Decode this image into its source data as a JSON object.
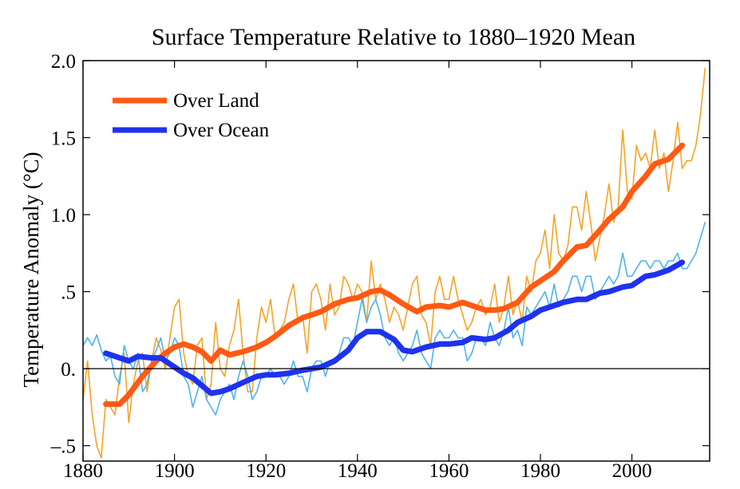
{
  "chart_data": {
    "type": "line",
    "title": "Surface Temperature Relative to 1880–1920 Mean",
    "xlabel": "",
    "ylabel": "Temperature Anomaly (°C)",
    "xlim": [
      1880,
      2017
    ],
    "ylim": [
      -0.6,
      2.0
    ],
    "x_ticks": [
      1880,
      1900,
      1920,
      1940,
      1960,
      1980,
      2000
    ],
    "x_tick_labels": [
      "1880",
      "1900",
      "1920",
      "1940",
      "1960",
      "1980",
      "2000"
    ],
    "y_ticks": [
      -0.5,
      0.0,
      0.5,
      1.0,
      1.5,
      2.0
    ],
    "y_tick_labels": [
      "–.5",
      "0.",
      ".5",
      "1.0",
      "1.5",
      "2.0"
    ],
    "zero_line": true,
    "legend_position": "top-left",
    "series": [
      {
        "name": "Over Land",
        "color": "#ff5a14",
        "kind": "smoothed",
        "x": [
          1885,
          1888,
          1890,
          1893,
          1896,
          1898,
          1900,
          1902,
          1904,
          1906,
          1908,
          1910,
          1912,
          1915,
          1918,
          1920,
          1922,
          1925,
          1928,
          1930,
          1932,
          1935,
          1938,
          1940,
          1943,
          1945,
          1947,
          1950,
          1953,
          1955,
          1958,
          1960,
          1963,
          1965,
          1968,
          1970,
          1972,
          1975,
          1978,
          1980,
          1983,
          1985,
          1988,
          1990,
          1993,
          1995,
          1998,
          2000,
          2003,
          2005,
          2008,
          2011
        ],
        "y": [
          -0.23,
          -0.23,
          -0.17,
          -0.05,
          0.05,
          0.1,
          0.14,
          0.16,
          0.14,
          0.11,
          0.05,
          0.12,
          0.09,
          0.11,
          0.14,
          0.17,
          0.21,
          0.28,
          0.33,
          0.35,
          0.37,
          0.42,
          0.45,
          0.46,
          0.5,
          0.51,
          0.48,
          0.42,
          0.37,
          0.4,
          0.41,
          0.4,
          0.43,
          0.41,
          0.38,
          0.38,
          0.39,
          0.43,
          0.53,
          0.57,
          0.63,
          0.7,
          0.79,
          0.8,
          0.9,
          0.97,
          1.05,
          1.15,
          1.25,
          1.33,
          1.36,
          1.45
        ]
      },
      {
        "name": "Over Ocean",
        "color": "#1e32f0",
        "kind": "smoothed",
        "x": [
          1885,
          1888,
          1890,
          1892,
          1895,
          1897,
          1900,
          1902,
          1904,
          1906,
          1908,
          1910,
          1912,
          1915,
          1918,
          1920,
          1922,
          1925,
          1928,
          1930,
          1932,
          1935,
          1938,
          1940,
          1942,
          1945,
          1948,
          1950,
          1952,
          1955,
          1958,
          1960,
          1963,
          1965,
          1968,
          1970,
          1973,
          1975,
          1978,
          1980,
          1983,
          1985,
          1988,
          1990,
          1993,
          1995,
          1998,
          2000,
          2003,
          2005,
          2008,
          2011
        ],
        "y": [
          0.1,
          0.07,
          0.05,
          0.08,
          0.07,
          0.07,
          0.01,
          -0.03,
          -0.06,
          -0.11,
          -0.16,
          -0.15,
          -0.13,
          -0.09,
          -0.05,
          -0.04,
          -0.04,
          -0.03,
          -0.01,
          0.0,
          0.01,
          0.05,
          0.12,
          0.2,
          0.24,
          0.24,
          0.19,
          0.12,
          0.11,
          0.14,
          0.16,
          0.16,
          0.17,
          0.2,
          0.19,
          0.2,
          0.25,
          0.3,
          0.34,
          0.38,
          0.41,
          0.43,
          0.45,
          0.45,
          0.49,
          0.5,
          0.53,
          0.54,
          0.6,
          0.61,
          0.64,
          0.69
        ]
      },
      {
        "name": "",
        "color": "#f7a326",
        "kind": "annual",
        "x": [
          1880,
          1881,
          1882,
          1883,
          1884,
          1885,
          1886,
          1887,
          1888,
          1889,
          1890,
          1891,
          1892,
          1893,
          1894,
          1895,
          1896,
          1897,
          1898,
          1899,
          1900,
          1901,
          1902,
          1903,
          1904,
          1905,
          1906,
          1907,
          1908,
          1909,
          1910,
          1911,
          1912,
          1913,
          1914,
          1915,
          1916,
          1917,
          1918,
          1919,
          1920,
          1921,
          1922,
          1923,
          1924,
          1925,
          1926,
          1927,
          1928,
          1929,
          1930,
          1931,
          1932,
          1933,
          1934,
          1935,
          1936,
          1937,
          1938,
          1939,
          1940,
          1941,
          1942,
          1943,
          1944,
          1945,
          1946,
          1947,
          1948,
          1949,
          1950,
          1951,
          1952,
          1953,
          1954,
          1955,
          1956,
          1957,
          1958,
          1959,
          1960,
          1961,
          1962,
          1963,
          1964,
          1965,
          1966,
          1967,
          1968,
          1969,
          1970,
          1971,
          1972,
          1973,
          1974,
          1975,
          1976,
          1977,
          1978,
          1979,
          1980,
          1981,
          1982,
          1983,
          1984,
          1985,
          1986,
          1987,
          1988,
          1989,
          1990,
          1991,
          1992,
          1993,
          1994,
          1995,
          1996,
          1997,
          1998,
          1999,
          2000,
          2001,
          2002,
          2003,
          2004,
          2005,
          2006,
          2007,
          2008,
          2009,
          2010,
          2011,
          2012,
          2013,
          2014,
          2015,
          2016
        ],
        "y": [
          -0.2,
          0.05,
          -0.3,
          -0.5,
          -0.58,
          -0.2,
          -0.25,
          -0.3,
          -0.05,
          0.1,
          -0.35,
          -0.1,
          0.05,
          0.1,
          -0.15,
          0.05,
          0.2,
          0.12,
          0.0,
          0.2,
          0.4,
          0.45,
          0.1,
          -0.05,
          -0.1,
          0.15,
          0.2,
          -0.2,
          -0.1,
          0.3,
          0.0,
          -0.05,
          0.15,
          0.25,
          0.45,
          0.1,
          -0.15,
          -0.15,
          0.2,
          0.4,
          0.3,
          0.45,
          0.2,
          0.25,
          0.3,
          0.45,
          0.55,
          0.3,
          0.35,
          0.1,
          0.5,
          0.55,
          0.45,
          0.25,
          0.55,
          0.35,
          0.4,
          0.6,
          0.55,
          0.45,
          0.55,
          0.5,
          0.3,
          0.7,
          0.45,
          0.55,
          0.45,
          0.3,
          0.4,
          0.35,
          0.25,
          0.4,
          0.55,
          0.6,
          0.35,
          0.3,
          0.15,
          0.5,
          0.6,
          0.45,
          0.45,
          0.6,
          0.45,
          0.35,
          0.25,
          0.3,
          0.4,
          0.45,
          0.35,
          0.4,
          0.55,
          0.3,
          0.4,
          0.6,
          0.35,
          0.45,
          0.3,
          0.6,
          0.5,
          0.7,
          0.75,
          0.9,
          0.65,
          1.0,
          0.75,
          0.7,
          0.8,
          1.05,
          1.05,
          0.9,
          1.15,
          0.95,
          0.7,
          0.85,
          1.0,
          1.2,
          0.95,
          1.05,
          1.55,
          1.15,
          1.1,
          1.45,
          1.35,
          1.4,
          1.3,
          1.55,
          1.3,
          1.4,
          1.15,
          1.35,
          1.6,
          1.3,
          1.35,
          1.35,
          1.45,
          1.65,
          1.95
        ]
      },
      {
        "name": "",
        "color": "#4db3f0",
        "kind": "annual",
        "x": [
          1880,
          1881,
          1882,
          1883,
          1884,
          1885,
          1886,
          1887,
          1888,
          1889,
          1890,
          1891,
          1892,
          1893,
          1894,
          1895,
          1896,
          1897,
          1898,
          1899,
          1900,
          1901,
          1902,
          1903,
          1904,
          1905,
          1906,
          1907,
          1908,
          1909,
          1910,
          1911,
          1912,
          1913,
          1914,
          1915,
          1916,
          1917,
          1918,
          1919,
          1920,
          1921,
          1922,
          1923,
          1924,
          1925,
          1926,
          1927,
          1928,
          1929,
          1930,
          1931,
          1932,
          1933,
          1934,
          1935,
          1936,
          1937,
          1938,
          1939,
          1940,
          1941,
          1942,
          1943,
          1944,
          1945,
          1946,
          1947,
          1948,
          1949,
          1950,
          1951,
          1952,
          1953,
          1954,
          1955,
          1956,
          1957,
          1958,
          1959,
          1960,
          1961,
          1962,
          1963,
          1964,
          1965,
          1966,
          1967,
          1968,
          1969,
          1970,
          1971,
          1972,
          1973,
          1974,
          1975,
          1976,
          1977,
          1978,
          1979,
          1980,
          1981,
          1982,
          1983,
          1984,
          1985,
          1986,
          1987,
          1988,
          1989,
          1990,
          1991,
          1992,
          1993,
          1994,
          1995,
          1996,
          1997,
          1998,
          1999,
          2000,
          2001,
          2002,
          2003,
          2004,
          2005,
          2006,
          2007,
          2008,
          2009,
          2010,
          2011,
          2012,
          2013,
          2014,
          2015,
          2016
        ],
        "y": [
          0.15,
          0.2,
          0.15,
          0.22,
          0.12,
          0.05,
          0.08,
          -0.05,
          -0.1,
          0.15,
          0.05,
          0.0,
          0.1,
          -0.15,
          -0.1,
          0.05,
          0.12,
          0.2,
          0.05,
          0.1,
          0.2,
          0.15,
          -0.05,
          -0.1,
          -0.25,
          -0.15,
          -0.05,
          -0.2,
          -0.25,
          -0.3,
          -0.2,
          -0.15,
          -0.1,
          -0.2,
          -0.05,
          0.05,
          -0.05,
          -0.2,
          -0.15,
          -0.05,
          -0.05,
          0.0,
          -0.05,
          -0.05,
          -0.1,
          -0.05,
          0.05,
          -0.05,
          -0.05,
          -0.15,
          0.0,
          0.05,
          0.05,
          -0.05,
          0.05,
          0.05,
          0.1,
          0.2,
          0.2,
          0.15,
          0.3,
          0.45,
          0.3,
          0.4,
          0.45,
          0.35,
          0.2,
          0.15,
          0.2,
          0.1,
          0.05,
          0.1,
          0.15,
          0.25,
          0.1,
          0.05,
          0.0,
          0.2,
          0.25,
          0.2,
          0.2,
          0.25,
          0.2,
          0.2,
          0.05,
          0.1,
          0.2,
          0.2,
          0.15,
          0.3,
          0.2,
          0.15,
          0.25,
          0.4,
          0.2,
          0.25,
          0.15,
          0.4,
          0.35,
          0.4,
          0.45,
          0.5,
          0.4,
          0.55,
          0.4,
          0.45,
          0.5,
          0.6,
          0.6,
          0.5,
          0.6,
          0.6,
          0.45,
          0.5,
          0.55,
          0.6,
          0.55,
          0.6,
          0.75,
          0.6,
          0.6,
          0.65,
          0.7,
          0.7,
          0.65,
          0.7,
          0.7,
          0.65,
          0.7,
          0.7,
          0.75,
          0.65,
          0.65,
          0.7,
          0.75,
          0.85,
          0.95
        ]
      }
    ]
  }
}
